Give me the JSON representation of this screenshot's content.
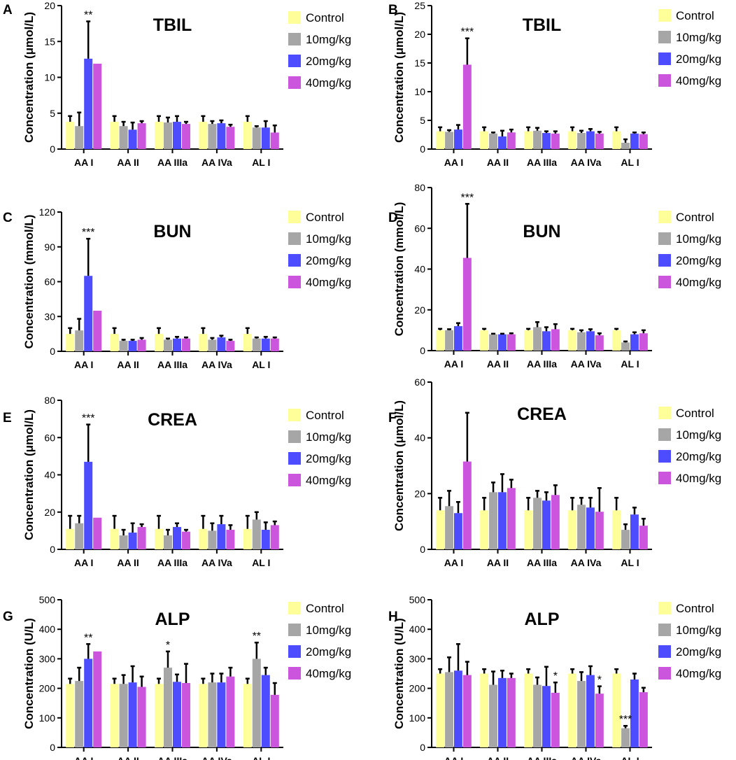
{
  "legend_labels": [
    "Control",
    "10mg/kg",
    "20mg/kg",
    "40mg/kg"
  ],
  "colors": {
    "Control": "#ffff99",
    "10mg/kg": "#a6a6a6",
    "20mg/kg": "#4d4dff",
    "40mg/kg": "#cc55dd",
    "error": "#000000"
  },
  "chart_data": [
    {
      "panel": "A",
      "type": "bar",
      "title": "TBIL",
      "ylabel": "Concentration (μmol/L)",
      "ylim": [
        0,
        20
      ],
      "yticks": [
        "0",
        "5",
        "10",
        "15",
        "20"
      ],
      "categories": [
        "AA I",
        "AA II",
        "AA IIIa",
        "AA IVa",
        "AL I"
      ],
      "series": [
        {
          "name": "Control",
          "values": [
            3.8,
            3.8,
            3.8,
            3.8,
            3.8
          ],
          "errors": [
            0.8,
            0.8,
            0.8,
            0.8,
            0.8
          ]
        },
        {
          "name": "10mg/kg",
          "values": [
            3.2,
            3.2,
            3.7,
            3.5,
            3.0
          ],
          "errors": [
            1.9,
            0.6,
            0.7,
            0.4,
            0.2
          ]
        },
        {
          "name": "20mg/kg",
          "values": [
            12.6,
            2.7,
            3.8,
            3.6,
            3.0
          ],
          "errors": [
            5.2,
            1.0,
            0.8,
            0.4,
            0.9
          ]
        },
        {
          "name": "40mg/kg",
          "values": [
            11.9,
            3.6,
            3.5,
            3.1,
            2.3
          ],
          "errors": [
            0,
            0.3,
            0.3,
            0.3,
            1.0
          ]
        }
      ],
      "annotations": [
        {
          "category": 0,
          "series": 2,
          "text": "**"
        }
      ]
    },
    {
      "panel": "B",
      "type": "bar",
      "title": "TBIL",
      "ylabel": "Concentration (μmol/L)",
      "ylim": [
        0,
        25
      ],
      "yticks": [
        "0",
        "5",
        "10",
        "15",
        "20",
        "25"
      ],
      "categories": [
        "AA I",
        "AA II",
        "AA IIIa",
        "AA IVa",
        "AL I"
      ],
      "series": [
        {
          "name": "Control",
          "values": [
            3.1,
            3.1,
            3.1,
            3.1,
            3.1
          ],
          "errors": [
            0.7,
            0.7,
            0.7,
            0.7,
            0.7
          ]
        },
        {
          "name": "10mg/kg",
          "values": [
            3.0,
            2.7,
            3.2,
            2.8,
            1.1
          ],
          "errors": [
            0.3,
            0.2,
            0.5,
            0.4,
            0.6
          ]
        },
        {
          "name": "20mg/kg",
          "values": [
            3.4,
            2.2,
            2.8,
            3.1,
            2.7
          ],
          "errors": [
            0.8,
            1.0,
            0.3,
            0.4,
            0.2
          ]
        },
        {
          "name": "40mg/kg",
          "values": [
            14.7,
            2.9,
            2.7,
            2.7,
            2.6
          ],
          "errors": [
            4.6,
            0.5,
            0.4,
            0.3,
            0.3
          ]
        }
      ],
      "annotations": [
        {
          "category": 0,
          "series": 3,
          "text": "***"
        }
      ]
    },
    {
      "panel": "C",
      "type": "bar",
      "title": "BUN",
      "ylabel": "Concentration (mmol/L)",
      "ylim": [
        0,
        120
      ],
      "yticks": [
        "0",
        "30",
        "60",
        "90",
        "120"
      ],
      "categories": [
        "AA I",
        "AA II",
        "AA IIIa",
        "AA IVa",
        "AL I"
      ],
      "series": [
        {
          "name": "Control",
          "values": [
            15,
            15,
            15,
            15,
            15
          ],
          "errors": [
            5,
            5,
            5,
            5,
            5
          ]
        },
        {
          "name": "10mg/kg",
          "values": [
            18,
            9,
            10,
            10,
            11
          ],
          "errors": [
            10,
            1,
            1,
            1.5,
            1
          ]
        },
        {
          "name": "20mg/kg",
          "values": [
            65,
            9,
            11,
            12,
            11
          ],
          "errors": [
            32,
            1,
            1.5,
            1.5,
            1.5
          ]
        },
        {
          "name": "40mg/kg",
          "values": [
            35,
            10,
            11,
            9,
            11
          ],
          "errors": [
            0,
            1.5,
            1,
            1,
            1
          ]
        }
      ],
      "annotations": [
        {
          "category": 0,
          "series": 2,
          "text": "***"
        }
      ]
    },
    {
      "panel": "D",
      "type": "bar",
      "title": "BUN",
      "ylabel": "Concentration (mmol/L)",
      "ylim": [
        0,
        80
      ],
      "yticks": [
        "0",
        "20",
        "40",
        "60",
        "80"
      ],
      "categories": [
        "AA I",
        "AA II",
        "AA IIIa",
        "AA IVa",
        "AL I"
      ],
      "series": [
        {
          "name": "Control",
          "values": [
            10,
            10,
            10,
            10,
            10
          ],
          "errors": [
            0.7,
            0.7,
            0.7,
            0.7,
            0.7
          ]
        },
        {
          "name": "10mg/kg",
          "values": [
            10,
            8,
            11.5,
            9,
            4
          ],
          "errors": [
            0.5,
            0.3,
            2.5,
            1,
            0.5
          ]
        },
        {
          "name": "20mg/kg",
          "values": [
            12,
            8,
            9.5,
            9.5,
            8
          ],
          "errors": [
            1.5,
            0.3,
            2,
            1,
            1
          ]
        },
        {
          "name": "40mg/kg",
          "values": [
            45.5,
            8,
            10.5,
            7.5,
            8.5
          ],
          "errors": [
            26.5,
            0.5,
            2.5,
            1,
            1.5
          ]
        }
      ],
      "annotations": [
        {
          "category": 0,
          "series": 3,
          "text": "***"
        }
      ]
    },
    {
      "panel": "E",
      "type": "bar",
      "title": "CREA",
      "ylabel": "Concentration (μmol/L)",
      "ylim": [
        0,
        80
      ],
      "yticks": [
        "0",
        "20",
        "40",
        "60",
        "80"
      ],
      "categories": [
        "AA I",
        "AA II",
        "AA IIIa",
        "AA IVa",
        "AL I"
      ],
      "series": [
        {
          "name": "Control",
          "values": [
            11,
            11,
            11,
            11,
            11
          ],
          "errors": [
            7,
            7,
            7,
            7,
            7
          ]
        },
        {
          "name": "10mg/kg",
          "values": [
            14,
            7.5,
            7.5,
            10,
            16
          ],
          "errors": [
            4,
            3,
            3,
            4,
            4
          ]
        },
        {
          "name": "20mg/kg",
          "values": [
            47,
            9,
            12,
            13.5,
            10.5
          ],
          "errors": [
            20,
            5,
            2,
            4.5,
            4
          ]
        },
        {
          "name": "40mg/kg",
          "values": [
            17,
            12,
            9.5,
            10.5,
            13
          ],
          "errors": [
            0,
            1.5,
            1,
            2.5,
            2
          ]
        }
      ],
      "annotations": [
        {
          "category": 0,
          "series": 2,
          "text": "***"
        }
      ]
    },
    {
      "panel": "F",
      "type": "bar",
      "title": "CREA",
      "ylabel": "Concentration (μmol/L)",
      "ylim": [
        0,
        60
      ],
      "yticks": [
        "0",
        "20",
        "40",
        "60"
      ],
      "categories": [
        "AA I",
        "AA II",
        "AA IIIa",
        "AA IVa",
        "AL I"
      ],
      "series": [
        {
          "name": "Control",
          "values": [
            14,
            14,
            14,
            14,
            14
          ],
          "errors": [
            4.5,
            4.5,
            4.5,
            4.5,
            4.5
          ]
        },
        {
          "name": "10mg/kg",
          "values": [
            15.5,
            20.5,
            18.5,
            16,
            7
          ],
          "errors": [
            5.5,
            3.5,
            2.5,
            2.5,
            2
          ]
        },
        {
          "name": "20mg/kg",
          "values": [
            13,
            20.5,
            17.5,
            15,
            12.5
          ],
          "errors": [
            4,
            6.5,
            3,
            3.5,
            2.5
          ]
        },
        {
          "name": "40mg/kg",
          "values": [
            31.5,
            22,
            19.5,
            13.5,
            8.5
          ],
          "errors": [
            17.5,
            3,
            3.5,
            8.5,
            2.5
          ]
        }
      ],
      "annotations": []
    },
    {
      "panel": "G",
      "type": "bar",
      "title": "ALP",
      "ylabel": "Concentration (U/L)",
      "ylim": [
        0,
        500
      ],
      "yticks": [
        "0",
        "100",
        "200",
        "300",
        "400",
        "500"
      ],
      "categories": [
        "AA I",
        "AA II",
        "AA IIIa",
        "AA IVa",
        "AL I"
      ],
      "series": [
        {
          "name": "Control",
          "values": [
            215,
            215,
            215,
            215,
            215
          ],
          "errors": [
            18,
            18,
            18,
            18,
            18
          ]
        },
        {
          "name": "10mg/kg",
          "values": [
            225,
            215,
            270,
            220,
            300
          ],
          "errors": [
            45,
            30,
            55,
            30,
            55
          ]
        },
        {
          "name": "20mg/kg",
          "values": [
            300,
            220,
            222,
            220,
            245
          ],
          "errors": [
            50,
            55,
            25,
            30,
            25
          ]
        },
        {
          "name": "40mg/kg",
          "values": [
            325,
            205,
            218,
            240,
            178
          ],
          "errors": [
            0,
            35,
            65,
            30,
            40
          ]
        }
      ],
      "annotations": [
        {
          "category": 0,
          "series": 2,
          "text": "**"
        },
        {
          "category": 2,
          "series": 1,
          "text": "*"
        },
        {
          "category": 4,
          "series": 1,
          "text": "**"
        }
      ]
    },
    {
      "panel": "H",
      "type": "bar",
      "title": "ALP",
      "ylabel": "Concentration (U/L)",
      "ylim": [
        0,
        500
      ],
      "yticks": [
        "0",
        "100",
        "200",
        "300",
        "400",
        "500"
      ],
      "categories": [
        "AA I",
        "AA II",
        "AA IIIa",
        "AA IVa",
        "AL I"
      ],
      "series": [
        {
          "name": "Control",
          "values": [
            250,
            250,
            250,
            250,
            250
          ],
          "errors": [
            15,
            15,
            15,
            15,
            15
          ]
        },
        {
          "name": "10mg/kg",
          "values": [
            255,
            212,
            212,
            225,
            65
          ],
          "errors": [
            50,
            45,
            25,
            30,
            8
          ]
        },
        {
          "name": "20mg/kg",
          "values": [
            260,
            235,
            208,
            245,
            230
          ],
          "errors": [
            90,
            25,
            65,
            30,
            20
          ]
        },
        {
          "name": "40mg/kg",
          "values": [
            245,
            235,
            185,
            182,
            187
          ],
          "errors": [
            45,
            15,
            35,
            25,
            15
          ]
        }
      ],
      "annotations": [
        {
          "category": 2,
          "series": 3,
          "text": "*"
        },
        {
          "category": 3,
          "series": 3,
          "text": "*"
        },
        {
          "category": 4,
          "series": 1,
          "text": "***"
        }
      ]
    }
  ]
}
